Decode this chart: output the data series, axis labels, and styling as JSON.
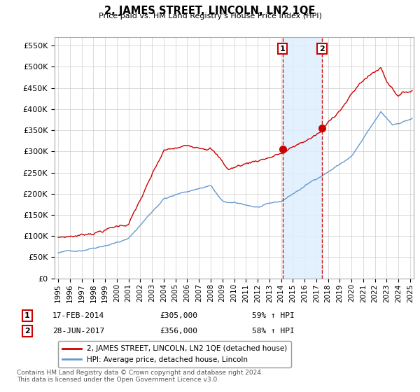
{
  "title": "2, JAMES STREET, LINCOLN, LN2 1QE",
  "subtitle": "Price paid vs. HM Land Registry's House Price Index (HPI)",
  "ylim": [
    0,
    570000
  ],
  "yticks": [
    0,
    50000,
    100000,
    150000,
    200000,
    250000,
    300000,
    350000,
    400000,
    450000,
    500000,
    550000
  ],
  "ytick_labels": [
    "£0",
    "£50K",
    "£100K",
    "£150K",
    "£200K",
    "£250K",
    "£300K",
    "£350K",
    "£400K",
    "£450K",
    "£500K",
    "£550K"
  ],
  "transaction1": {
    "date": "17-FEB-2014",
    "price": 305000,
    "pct": "59% ↑ HPI",
    "label": "1",
    "x_year": 2014.12
  },
  "transaction2": {
    "date": "28-JUN-2017",
    "price": 356000,
    "pct": "58% ↑ HPI",
    "label": "2",
    "x_year": 2017.49
  },
  "legend_line1": "2, JAMES STREET, LINCOLN, LN2 1QE (detached house)",
  "legend_line2": "HPI: Average price, detached house, Lincoln",
  "footnote": "Contains HM Land Registry data © Crown copyright and database right 2024.\nThis data is licensed under the Open Government Licence v3.0.",
  "line1_color": "#cc0000",
  "line2_color": "#6699cc",
  "shading_color": "#ddeeff",
  "background_color": "#ffffff",
  "grid_color": "#cccccc",
  "xlim_left": 1994.7,
  "xlim_right": 2025.3
}
